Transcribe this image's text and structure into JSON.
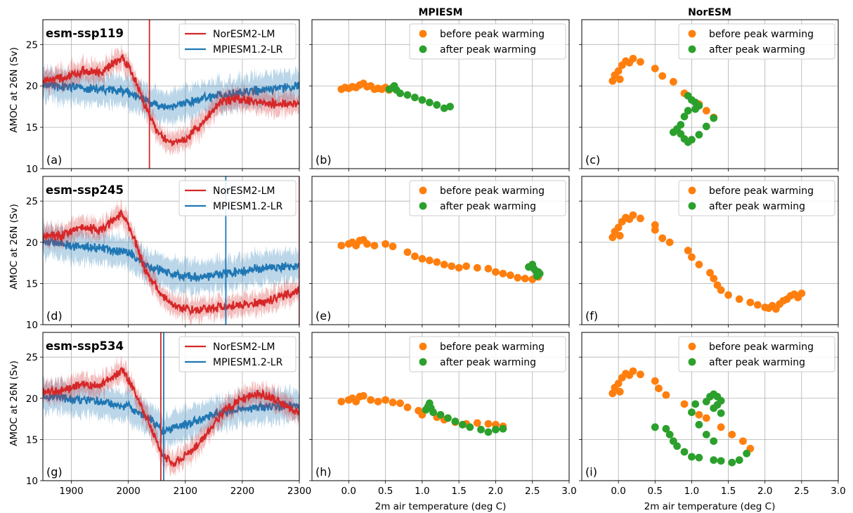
{
  "columns": {
    "left": "",
    "middle": "MPIESM",
    "right": "NorESM"
  },
  "ylabel": "AMOC at 26N (Sv)",
  "xlabel_scatter": "2m air temperature (deg C)",
  "colors": {
    "noresm": "#d62728",
    "mpiesm": "#1f77b4",
    "before": "#ff7f0e",
    "after": "#2ca02c",
    "grid": "#b0b0b0"
  },
  "legends": {
    "timeseries": [
      "NorESM2-LM",
      "MPIESM1.2-LR"
    ],
    "scatter": [
      "before peak warming",
      "after peak warming"
    ]
  },
  "rows": [
    {
      "scenario": "esm-ssp119",
      "tags": [
        "(a)",
        "(b)",
        "(c)"
      ]
    },
    {
      "scenario": "esm-ssp245",
      "tags": [
        "(d)",
        "(e)",
        "(f)"
      ]
    },
    {
      "scenario": "esm-ssp534",
      "tags": [
        "(g)",
        "(h)",
        "(i)"
      ]
    }
  ],
  "chart_data": [
    {
      "type": "line",
      "panel": "(a)",
      "scenario": "esm-ssp119",
      "xlim": [
        1850,
        2300
      ],
      "ylim": [
        10,
        28
      ],
      "grid": true,
      "legend": "top-right",
      "xticks": [
        1900,
        2000,
        2100,
        2200,
        2300
      ],
      "yticks": [
        10,
        15,
        20,
        25
      ],
      "vlines": {
        "NorESM2-LM": 2037,
        "MPIESM1.2-LR": null
      },
      "series": [
        {
          "name": "NorESM2-LM",
          "x": [
            1850,
            1880,
            1920,
            1950,
            1970,
            1990,
            2010,
            2030,
            2050,
            2070,
            2100,
            2130,
            2160,
            2190,
            2220,
            2260,
            2300
          ],
          "y": [
            20.8,
            20.8,
            21.8,
            21.5,
            22.5,
            23.5,
            21,
            17.5,
            14.5,
            13.2,
            13.5,
            15.5,
            18,
            18.5,
            18,
            17.8,
            17.8
          ],
          "band": 1.2
        },
        {
          "name": "MPIESM1.2-LR",
          "x": [
            1850,
            1900,
            1950,
            2000,
            2030,
            2060,
            2100,
            2150,
            2200,
            2250,
            2300
          ],
          "y": [
            20.2,
            19.8,
            19.6,
            19.3,
            18.2,
            17.3,
            18,
            18.8,
            19.3,
            19.6,
            20
          ],
          "band": 1.8
        }
      ]
    },
    {
      "type": "scatter",
      "panel": "(b)",
      "model": "MPIESM",
      "scenario": "esm-ssp119",
      "xlim": [
        -0.5,
        3.0
      ],
      "ylim": [
        10,
        28
      ],
      "grid": true,
      "legend": "top-right",
      "xticks": [
        0.0,
        0.5,
        1.0,
        1.5,
        2.0,
        2.5,
        3.0
      ],
      "yticks": [
        10,
        15,
        20,
        25
      ],
      "before": [
        [
          -0.1,
          19.6
        ],
        [
          -0.05,
          19.8
        ],
        [
          0,
          19.7
        ],
        [
          0.05,
          19.9
        ],
        [
          0.1,
          19.8
        ],
        [
          0.15,
          20.1
        ],
        [
          0.2,
          20.3
        ],
        [
          0.25,
          19.9
        ],
        [
          0.3,
          20
        ],
        [
          0.35,
          19.6
        ],
        [
          0.4,
          19.7
        ],
        [
          0.45,
          19.6
        ],
        [
          0.5,
          19.8
        ],
        [
          0.55,
          19.5
        ]
      ],
      "after": [
        [
          0.55,
          19.6
        ],
        [
          0.6,
          19.8
        ],
        [
          0.62,
          20
        ],
        [
          0.65,
          19.5
        ],
        [
          0.7,
          19.1
        ],
        [
          0.8,
          18.9
        ],
        [
          0.9,
          18.6
        ],
        [
          1,
          18.3
        ],
        [
          1.1,
          18
        ],
        [
          1.2,
          17.7
        ],
        [
          1.3,
          17.3
        ],
        [
          1.38,
          17.5
        ]
      ]
    },
    {
      "type": "scatter",
      "panel": "(c)",
      "model": "NorESM",
      "scenario": "esm-ssp119",
      "xlim": [
        -0.5,
        3.0
      ],
      "ylim": [
        10,
        28
      ],
      "grid": true,
      "legend": "top-right",
      "xticks": [
        0.0,
        0.5,
        1.0,
        1.5,
        2.0,
        2.5,
        3.0
      ],
      "yticks": [
        10,
        15,
        20,
        25
      ],
      "before": [
        [
          -0.08,
          20.6
        ],
        [
          -0.05,
          21.3
        ],
        [
          0,
          21.8
        ],
        [
          0.02,
          20.8
        ],
        [
          0.05,
          22.5
        ],
        [
          0.1,
          23
        ],
        [
          0.15,
          22.8
        ],
        [
          0.2,
          23.3
        ],
        [
          0.3,
          22.9
        ],
        [
          0.5,
          22.1
        ],
        [
          0.6,
          21.2
        ],
        [
          0.75,
          20.5
        ],
        [
          0.9,
          19.1
        ],
        [
          1.1,
          17.8
        ],
        [
          1.2,
          17
        ],
        [
          1.3,
          16.2
        ]
      ],
      "after": [
        [
          0.95,
          18.8
        ],
        [
          1,
          18.3
        ],
        [
          1.05,
          18
        ],
        [
          1.1,
          17.6
        ],
        [
          1.05,
          17.2
        ],
        [
          0.95,
          17
        ],
        [
          0.9,
          16.3
        ],
        [
          0.85,
          15.3
        ],
        [
          0.8,
          14.8
        ],
        [
          0.75,
          14.4
        ],
        [
          0.85,
          14.2
        ],
        [
          0.9,
          13.6
        ],
        [
          0.95,
          13.2
        ],
        [
          1,
          13.5
        ],
        [
          1.1,
          14.1
        ],
        [
          1.2,
          15.1
        ],
        [
          1.3,
          16.1
        ]
      ]
    },
    {
      "type": "line",
      "panel": "(d)",
      "scenario": "esm-ssp245",
      "xlim": [
        1850,
        2300
      ],
      "ylim": [
        10,
        28
      ],
      "grid": true,
      "legend": "top-right",
      "xticks": [
        1900,
        2000,
        2100,
        2200,
        2300
      ],
      "yticks": [
        10,
        15,
        20,
        25
      ],
      "vlines": {
        "NorESM2-LM": 2300,
        "MPIESM1.2-LR": 2171
      },
      "series": [
        {
          "name": "NorESM2-LM",
          "x": [
            1850,
            1880,
            1920,
            1950,
            1970,
            1990,
            2010,
            2030,
            2060,
            2090,
            2120,
            2160,
            2200,
            2240,
            2270,
            2300
          ],
          "y": [
            20.8,
            20.8,
            21.8,
            21.5,
            22.5,
            23.5,
            20.5,
            16.5,
            13.3,
            12,
            11.8,
            12.2,
            12.5,
            12.7,
            13.5,
            14.2
          ],
          "band": 1.2
        },
        {
          "name": "MPIESM1.2-LR",
          "x": [
            1850,
            1900,
            1950,
            2000,
            2040,
            2080,
            2110,
            2150,
            2200,
            2250,
            2300
          ],
          "y": [
            20.2,
            19.6,
            19.3,
            18.8,
            17,
            16.2,
            15.8,
            16,
            16.5,
            17,
            17.2
          ],
          "band": 1.8
        }
      ]
    },
    {
      "type": "scatter",
      "panel": "(e)",
      "model": "MPIESM",
      "scenario": "esm-ssp245",
      "xlim": [
        -0.5,
        3.0
      ],
      "ylim": [
        10,
        28
      ],
      "grid": true,
      "legend": "top-right",
      "xticks": [
        0.0,
        0.5,
        1.0,
        1.5,
        2.0,
        2.5,
        3.0
      ],
      "yticks": [
        10,
        15,
        20,
        25
      ],
      "before": [
        [
          -0.1,
          19.6
        ],
        [
          0,
          19.8
        ],
        [
          0.05,
          20
        ],
        [
          0.1,
          19.6
        ],
        [
          0.15,
          20.2
        ],
        [
          0.2,
          20.3
        ],
        [
          0.25,
          19.8
        ],
        [
          0.35,
          19.6
        ],
        [
          0.5,
          19.8
        ],
        [
          0.6,
          19.5
        ],
        [
          0.8,
          18.8
        ],
        [
          0.9,
          18.3
        ],
        [
          1,
          18
        ],
        [
          1.1,
          17.8
        ],
        [
          1.2,
          17.6
        ],
        [
          1.3,
          17.3
        ],
        [
          1.4,
          17.1
        ],
        [
          1.5,
          16.9
        ],
        [
          1.6,
          17.1
        ],
        [
          1.75,
          16.9
        ],
        [
          1.9,
          16.8
        ],
        [
          2,
          16.4
        ],
        [
          2.1,
          16.2
        ],
        [
          2.2,
          16
        ],
        [
          2.3,
          15.7
        ],
        [
          2.4,
          15.6
        ],
        [
          2.5,
          15.5
        ],
        [
          2.58,
          15.8
        ]
      ],
      "after": [
        [
          2.45,
          17
        ],
        [
          2.5,
          17.3
        ],
        [
          2.52,
          16.8
        ],
        [
          2.55,
          16.5
        ],
        [
          2.58,
          16.4
        ],
        [
          2.6,
          16.2
        ],
        [
          2.56,
          15.9
        ]
      ]
    },
    {
      "type": "scatter",
      "panel": "(f)",
      "model": "NorESM",
      "scenario": "esm-ssp245",
      "xlim": [
        -0.5,
        3.0
      ],
      "ylim": [
        10,
        28
      ],
      "grid": true,
      "legend": "top-right",
      "xticks": [
        0.0,
        0.5,
        1.0,
        1.5,
        2.0,
        2.5,
        3.0
      ],
      "yticks": [
        10,
        15,
        20,
        25
      ],
      "before": [
        [
          -0.08,
          20.6
        ],
        [
          -0.05,
          21.3
        ],
        [
          0,
          21.8
        ],
        [
          0.02,
          20.8
        ],
        [
          0.05,
          22.5
        ],
        [
          0.1,
          23
        ],
        [
          0.15,
          22.8
        ],
        [
          0.2,
          23.3
        ],
        [
          0.3,
          22.9
        ],
        [
          0.5,
          22.1
        ],
        [
          0.5,
          21.5
        ],
        [
          0.6,
          20.5
        ],
        [
          0.7,
          20
        ],
        [
          0.95,
          19
        ],
        [
          1,
          18.2
        ],
        [
          1.1,
          17.3
        ],
        [
          1.25,
          16.3
        ],
        [
          1.3,
          15.6
        ],
        [
          1.35,
          14.8
        ],
        [
          1.4,
          14.2
        ],
        [
          1.5,
          13.6
        ],
        [
          1.65,
          13.1
        ],
        [
          1.8,
          12.7
        ],
        [
          1.9,
          12.4
        ],
        [
          2,
          12.1
        ],
        [
          2.05,
          12
        ],
        [
          2.1,
          12.3
        ],
        [
          2.15,
          11.9
        ],
        [
          2.2,
          12.5
        ],
        [
          2.25,
          12.9
        ],
        [
          2.3,
          13.1
        ],
        [
          2.35,
          13.5
        ],
        [
          2.4,
          13.7
        ],
        [
          2.45,
          13.3
        ],
        [
          2.5,
          13.8
        ]
      ],
      "after": []
    },
    {
      "type": "line",
      "panel": "(g)",
      "scenario": "esm-ssp534",
      "xlim": [
        1850,
        2300
      ],
      "ylim": [
        10,
        28
      ],
      "grid": true,
      "legend": "top-right",
      "xticks": [
        1900,
        2000,
        2100,
        2200,
        2300
      ],
      "yticks": [
        10,
        15,
        20,
        25
      ],
      "vlines": {
        "NorESM2-LM": 2057,
        "MPIESM1.2-LR": 2062
      },
      "series": [
        {
          "name": "NorESM2-LM",
          "x": [
            1850,
            1880,
            1920,
            1950,
            1970,
            1990,
            2010,
            2040,
            2060,
            2080,
            2110,
            2140,
            2170,
            2200,
            2230,
            2260,
            2300
          ],
          "y": [
            20.8,
            20.8,
            21.8,
            21.5,
            22.5,
            23.5,
            21,
            16.5,
            13,
            12.2,
            13.5,
            16,
            18.5,
            20,
            20.5,
            19.8,
            18.2
          ],
          "band": 1.2
        },
        {
          "name": "MPIESM1.2-LR",
          "x": [
            1850,
            1900,
            1950,
            2000,
            2040,
            2060,
            2080,
            2110,
            2150,
            2200,
            2250,
            2300
          ],
          "y": [
            20.2,
            19.8,
            19.6,
            19,
            17.5,
            16,
            16.4,
            17,
            18,
            18.8,
            19,
            19
          ],
          "band": 1.8
        }
      ]
    },
    {
      "type": "scatter",
      "panel": "(h)",
      "model": "MPIESM",
      "scenario": "esm-ssp534",
      "xlim": [
        -0.5,
        3.0
      ],
      "ylim": [
        10,
        28
      ],
      "grid": true,
      "legend": "top-right",
      "xticks": [
        0.0,
        0.5,
        1.0,
        1.5,
        2.0,
        2.5,
        3.0
      ],
      "yticks": [
        10,
        15,
        20,
        25
      ],
      "before": [
        [
          -0.1,
          19.6
        ],
        [
          0,
          19.8
        ],
        [
          0.05,
          20
        ],
        [
          0.1,
          19.6
        ],
        [
          0.15,
          20.2
        ],
        [
          0.2,
          20.3
        ],
        [
          0.3,
          19.8
        ],
        [
          0.4,
          19.6
        ],
        [
          0.5,
          19.8
        ],
        [
          0.6,
          19.5
        ],
        [
          0.7,
          19.4
        ],
        [
          0.8,
          18.9
        ],
        [
          0.95,
          18.5
        ],
        [
          1,
          18
        ],
        [
          1.2,
          17.7
        ],
        [
          1.3,
          17.4
        ],
        [
          1.45,
          17.1
        ],
        [
          1.6,
          16.9
        ],
        [
          1.75,
          17
        ],
        [
          1.9,
          16.9
        ],
        [
          2,
          16.8
        ],
        [
          2.1,
          16.6
        ]
      ],
      "after": [
        [
          1.05,
          18.6
        ],
        [
          1.08,
          19
        ],
        [
          1.1,
          19.4
        ],
        [
          1.12,
          18.8
        ],
        [
          1.15,
          18.3
        ],
        [
          1.25,
          18
        ],
        [
          1.35,
          17.6
        ],
        [
          1.45,
          17.2
        ],
        [
          1.55,
          16.8
        ],
        [
          1.65,
          16.5
        ],
        [
          1.8,
          16.2
        ],
        [
          1.9,
          15.9
        ],
        [
          2,
          16.2
        ],
        [
          2.1,
          16.3
        ]
      ]
    },
    {
      "type": "scatter",
      "panel": "(i)",
      "model": "NorESM",
      "scenario": "esm-ssp534",
      "xlim": [
        -0.5,
        3.0
      ],
      "ylim": [
        10,
        28
      ],
      "grid": true,
      "legend": "top-right",
      "xticks": [
        0.0,
        0.5,
        1.0,
        1.5,
        2.0,
        2.5,
        3.0
      ],
      "yticks": [
        10,
        15,
        20,
        25
      ],
      "before": [
        [
          -0.08,
          20.6
        ],
        [
          -0.05,
          21.3
        ],
        [
          0,
          21.8
        ],
        [
          0.02,
          20.8
        ],
        [
          0.05,
          22.5
        ],
        [
          0.1,
          23
        ],
        [
          0.15,
          22.8
        ],
        [
          0.2,
          23.3
        ],
        [
          0.3,
          22.9
        ],
        [
          0.5,
          22.1
        ],
        [
          0.55,
          21.2
        ],
        [
          0.65,
          20.4
        ],
        [
          0.9,
          19.3
        ],
        [
          1.1,
          18
        ],
        [
          1.2,
          17.6
        ],
        [
          1.4,
          16.5
        ],
        [
          1.55,
          15.6
        ],
        [
          1.7,
          14.8
        ],
        [
          1.8,
          13.9
        ]
      ],
      "after": [
        [
          0.5,
          16.5
        ],
        [
          0.65,
          16.3
        ],
        [
          0.7,
          15.6
        ],
        [
          0.75,
          14.8
        ],
        [
          0.8,
          14.2
        ],
        [
          0.9,
          13.5
        ],
        [
          1,
          12.9
        ],
        [
          1.1,
          12.8
        ],
        [
          1.3,
          12.5
        ],
        [
          1.4,
          12.4
        ],
        [
          1.55,
          12.2
        ],
        [
          1.65,
          12.5
        ],
        [
          1.75,
          13.3
        ],
        [
          1.3,
          14.8
        ],
        [
          1.2,
          15.6
        ],
        [
          1.1,
          16.8
        ],
        [
          1,
          18.3
        ],
        [
          1.05,
          19.3
        ],
        [
          1.2,
          19.6
        ],
        [
          1.25,
          20.2
        ],
        [
          1.3,
          20.5
        ],
        [
          1.35,
          20.2
        ],
        [
          1.4,
          19.7
        ],
        [
          1.35,
          19.2
        ],
        [
          1.3,
          18.8
        ],
        [
          1.4,
          18.2
        ]
      ]
    }
  ]
}
